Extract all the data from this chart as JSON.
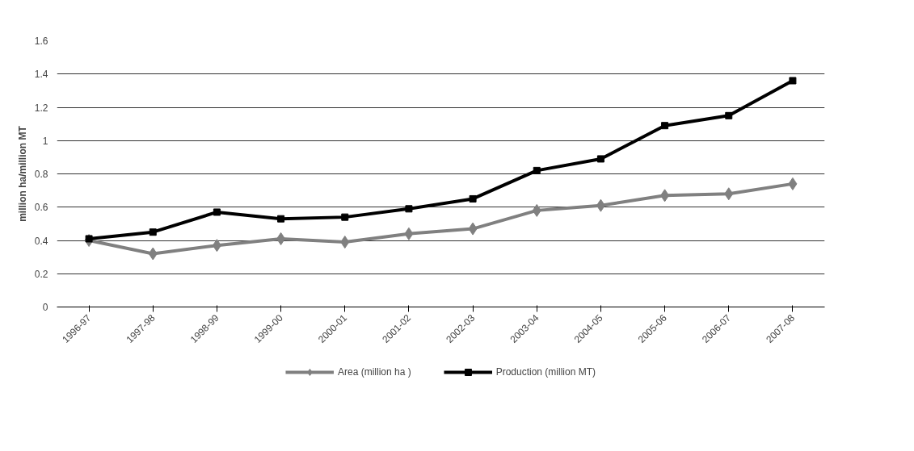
{
  "chart_data": {
    "type": "line",
    "ylabel": "million ha/million MT",
    "categories": [
      "1996-97",
      "1997-98",
      "1998-99",
      "1999-00",
      "2000-01",
      "2001-02",
      "2002-03",
      "2003-04",
      "2004-05",
      "2005-06",
      "2006-07",
      "2007-08"
    ],
    "series": [
      {
        "name": "Area (million ha )",
        "color": "#808080",
        "marker": "diamond",
        "values": [
          0.4,
          0.32,
          0.37,
          0.41,
          0.39,
          0.44,
          0.47,
          0.58,
          0.61,
          0.67,
          0.68,
          0.74
        ]
      },
      {
        "name": "Production (million MT)",
        "color": "#000000",
        "marker": "square",
        "values": [
          0.41,
          0.45,
          0.57,
          0.53,
          0.54,
          0.59,
          0.65,
          0.82,
          0.89,
          1.09,
          1.15,
          1.36
        ]
      }
    ],
    "ylim": [
      0,
      1.6
    ],
    "yticks": [
      0,
      0.2,
      0.4,
      0.6,
      0.8,
      1,
      1.2,
      1.4,
      1.6
    ],
    "grid": "y",
    "legend": "bottom",
    "line_style": "solid"
  }
}
